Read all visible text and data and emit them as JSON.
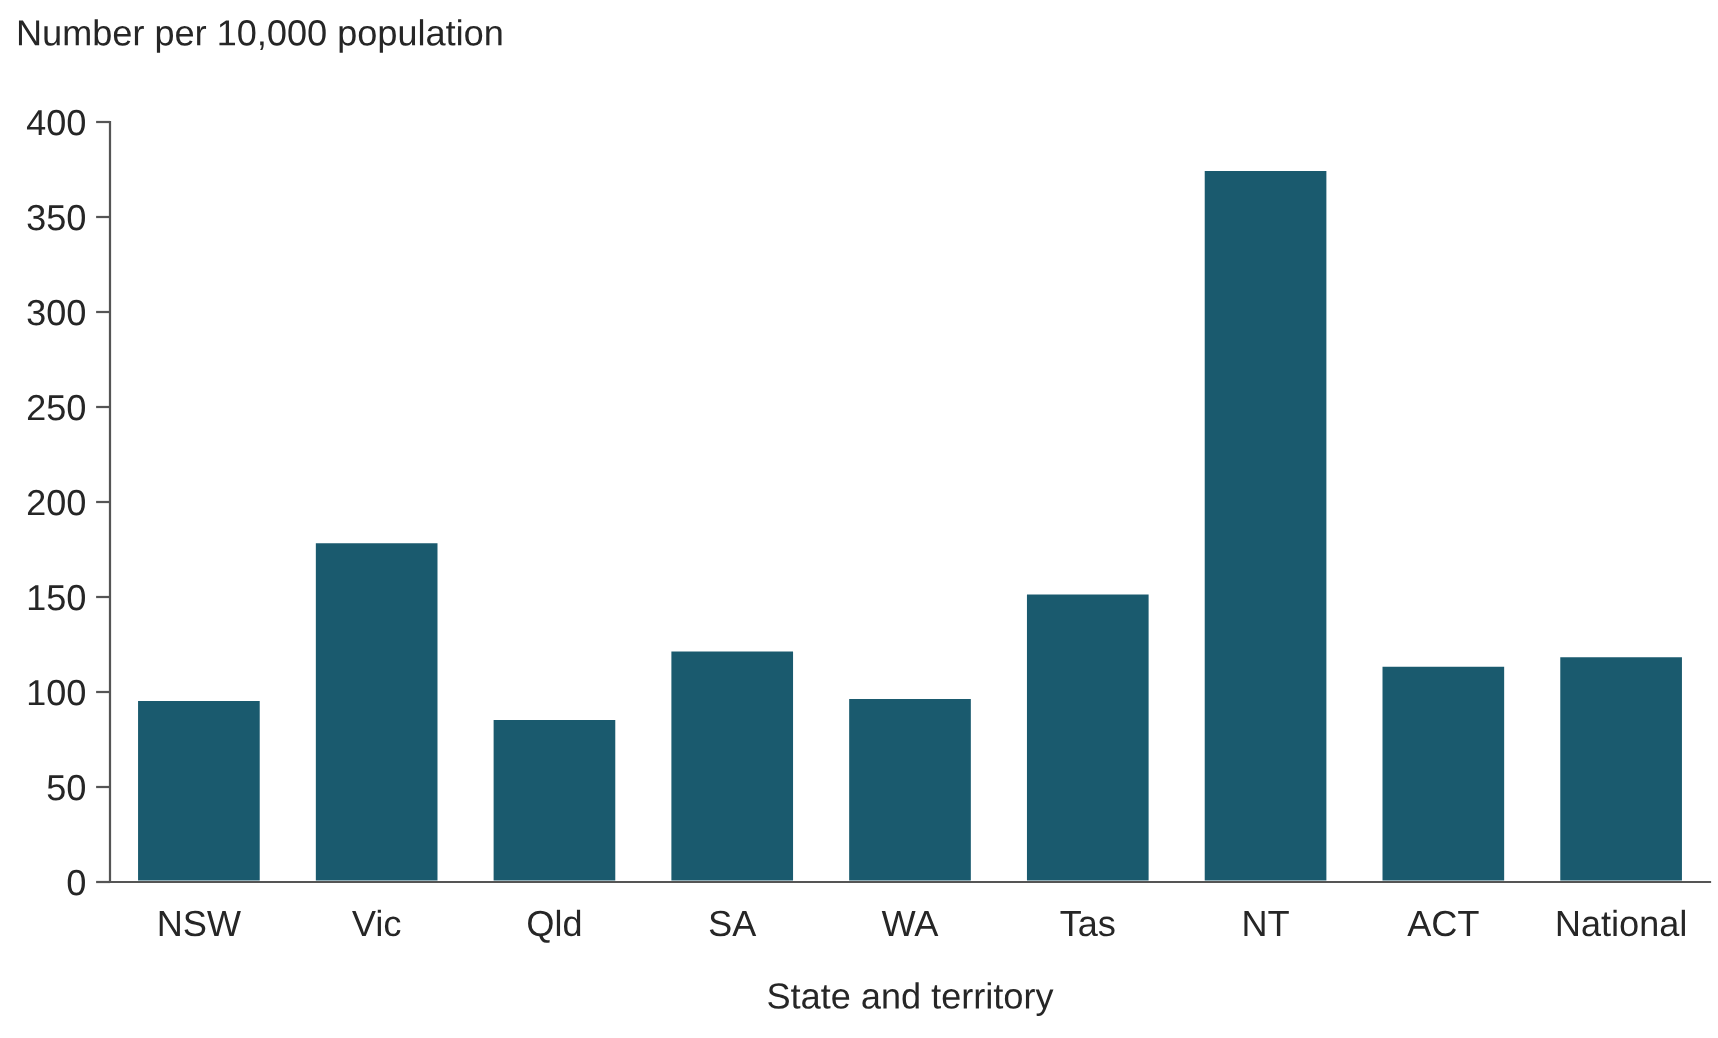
{
  "chart_data": {
    "type": "bar",
    "ylabel": "Number per 10,000 population",
    "xlabel": "State and territory",
    "categories": [
      "NSW",
      "Vic",
      "Qld",
      "SA",
      "WA",
      "Tas",
      "NT",
      "ACT",
      "National"
    ],
    "values": [
      96,
      179,
      86,
      122,
      97,
      152,
      375,
      114,
      119
    ],
    "color": "#1a5a6e",
    "ylim": [
      0,
      400
    ],
    "yticks": [
      0,
      50,
      100,
      150,
      200,
      250,
      300,
      350,
      400
    ],
    "grid": false,
    "legend": false
  }
}
